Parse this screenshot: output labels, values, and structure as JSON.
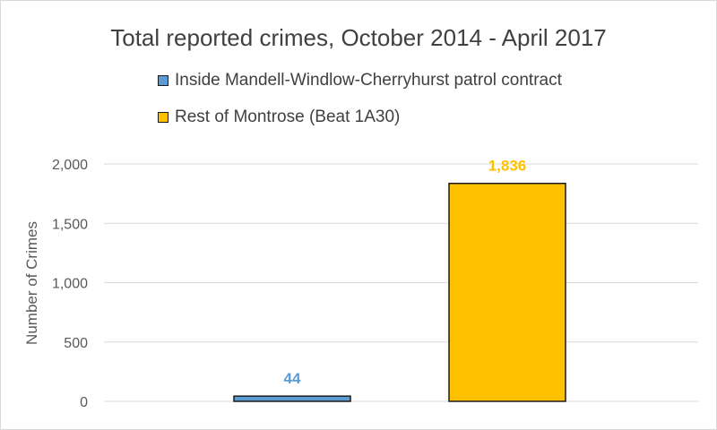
{
  "chart_data": {
    "type": "bar",
    "title": "Total reported crimes, October 2014 - April 2017",
    "ylabel": "Number of Crimes",
    "xlabel": "",
    "ylim": [
      0,
      2000
    ],
    "y_ticks": [
      0,
      500,
      1000,
      1500,
      2000
    ],
    "y_tick_labels": [
      "0",
      "500",
      "1,000",
      "1,500",
      "2,000"
    ],
    "grid": true,
    "legend_position": "top",
    "series": [
      {
        "name": "Inside Mandell-Windlow-Cherryhurst patrol contract",
        "value": 44,
        "data_label": "44",
        "color": "#5b9bd5",
        "label_color": "#5b9bd5"
      },
      {
        "name": "Rest of Montrose (Beat 1A30)",
        "value": 1836,
        "data_label": "1,836",
        "color": "#ffc000",
        "label_color": "#ffc000"
      }
    ]
  }
}
